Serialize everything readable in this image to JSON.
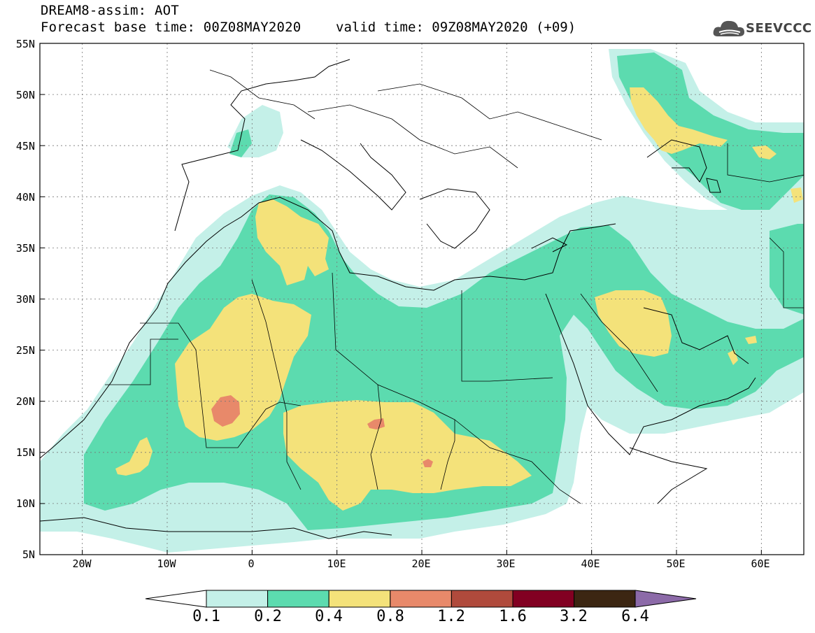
{
  "header": {
    "title_line1": "DREAM8-assim: AOT",
    "title_line2": "Forecast base time: 00Z08MAY2020",
    "valid_time": "valid time: 09Z08MAY2020 (+09)"
  },
  "logo": {
    "text": "SEEVCCC",
    "icon": "cloud-logo-icon"
  },
  "map": {
    "lon_range": [
      -25,
      65
    ],
    "lat_range": [
      5,
      55
    ],
    "lat_labels": [
      "55N",
      "50N",
      "45N",
      "40N",
      "35N",
      "30N",
      "25N",
      "20N",
      "15N",
      "10N",
      "5N"
    ],
    "lon_labels": [
      "20W",
      "10W",
      "0",
      "10E",
      "20E",
      "30E",
      "40E",
      "50E",
      "60E"
    ],
    "grid": "dotted",
    "level_colors": [
      "#c4f0e8",
      "#5cdbaf",
      "#f4e27a",
      "#e8896a",
      "#b04a3c",
      "#820022",
      "#3c2612",
      "#8c6aa8"
    ]
  },
  "colorbar": {
    "labels": [
      "0.1",
      "0.2",
      "0.4",
      "0.8",
      "1.2",
      "1.6",
      "3.2",
      "6.4"
    ],
    "colors": [
      "#c4f0e8",
      "#5cdbaf",
      "#f4e27a",
      "#e8896a",
      "#b04a3c",
      "#820022",
      "#3c2612",
      "#8c6aa8"
    ],
    "low_end_color": "#ffffff"
  }
}
